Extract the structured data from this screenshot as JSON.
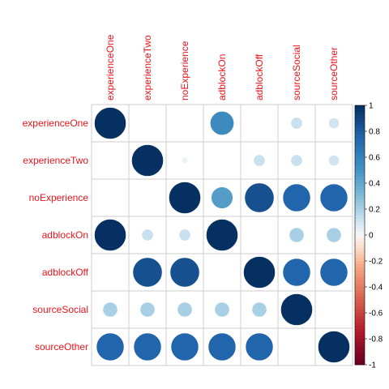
{
  "chart_data": {
    "type": "heatmap",
    "labels": [
      "experienceOne",
      "experienceTwo",
      "noExperience",
      "adblockOn",
      "adblockOff",
      "sourceSocial",
      "sourceOther"
    ],
    "matrix": [
      [
        1.0,
        null,
        null,
        0.55,
        null,
        0.12,
        0.1
      ],
      [
        null,
        1.0,
        0.03,
        null,
        0.12,
        0.12,
        0.1
      ],
      [
        null,
        null,
        1.0,
        0.45,
        0.85,
        0.75,
        0.75
      ],
      [
        1.0,
        0.12,
        0.12,
        1.0,
        null,
        0.2,
        0.2
      ],
      [
        null,
        0.85,
        0.85,
        null,
        1.0,
        0.75,
        0.75
      ],
      [
        0.2,
        0.2,
        0.2,
        0.2,
        0.2,
        1.0,
        null
      ],
      [
        0.75,
        0.75,
        0.75,
        0.75,
        0.75,
        null,
        1.0
      ]
    ],
    "colorbar": {
      "range": [
        -1,
        1
      ],
      "ticks": [
        "1",
        "0.8",
        "0.6",
        "0.4",
        "0.2",
        "0",
        "-0.2",
        "-0.4",
        "-0.6",
        "-0.8",
        "-1"
      ],
      "colors": {
        "negative": "#67001f",
        "neutral": "#f7f7f7",
        "positive": "#053061"
      }
    },
    "grid": true,
    "label_color": "#e8141c"
  }
}
